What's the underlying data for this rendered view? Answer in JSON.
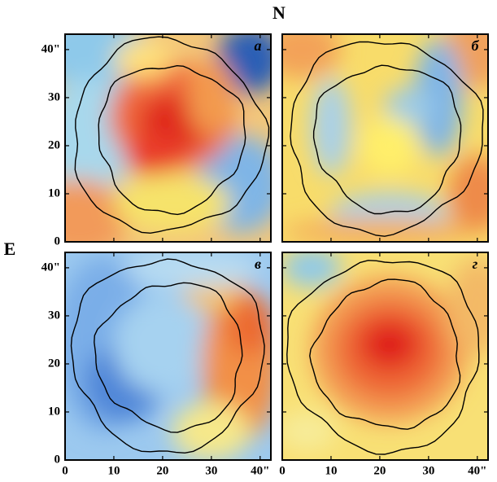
{
  "title": "N",
  "side_label": "E",
  "panels": [
    {
      "label": "а"
    },
    {
      "label": "б"
    },
    {
      "label": "в"
    },
    {
      "label": "г"
    }
  ],
  "xlim": [
    0,
    42.2
  ],
  "ylim": [
    0,
    43.2
  ],
  "xticks": [
    0,
    10,
    20,
    30,
    {
      "value": 40,
      "label": "40\""
    }
  ],
  "yticks": [
    0,
    10,
    20,
    30,
    {
      "value": 40,
      "label": "40\""
    }
  ]
}
